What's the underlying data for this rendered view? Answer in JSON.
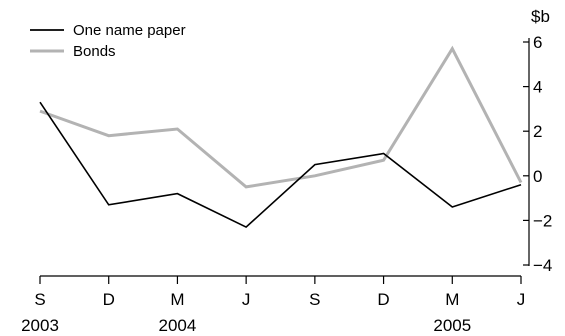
{
  "chart_data": {
    "type": "line",
    "x": [
      "S",
      "D",
      "M",
      "J",
      "S",
      "D",
      "M",
      "J"
    ],
    "year_labels": [
      {
        "at": 0,
        "text": "2003"
      },
      {
        "at": 2,
        "text": "2004"
      },
      {
        "at": 6,
        "text": "2005"
      }
    ],
    "ylabel": "$b",
    "ylim": [
      -4,
      6
    ],
    "yticks": [
      6,
      4,
      2,
      0,
      -2,
      -4
    ],
    "ytick_labels": [
      "6",
      "4",
      "2",
      "0",
      "−2",
      "−4"
    ],
    "y_axis_side": "right",
    "legend_position": "top-left",
    "series": [
      {
        "name": "One name paper",
        "color": "#000000",
        "values": [
          3.3,
          -1.3,
          -0.8,
          -2.3,
          0.5,
          1.0,
          -1.4,
          -0.4
        ]
      },
      {
        "name": "Bonds",
        "color": "#b3b3b3",
        "values": [
          2.9,
          1.8,
          2.1,
          -0.5,
          0.0,
          0.7,
          5.7,
          -0.3
        ]
      }
    ]
  }
}
